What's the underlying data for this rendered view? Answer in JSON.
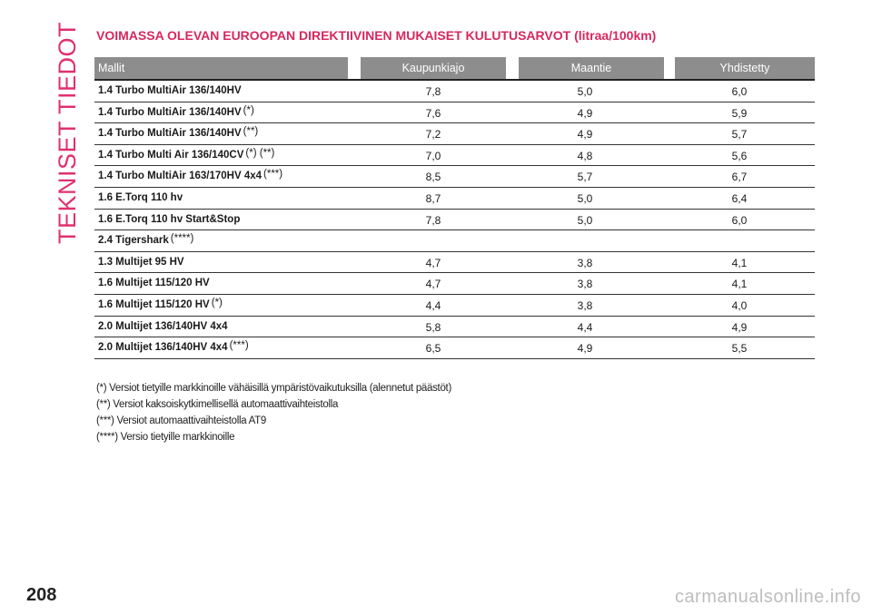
{
  "side_title": "TEKNISET TIEDOT",
  "heading": "VOIMASSA OLEVAN EUROOPAN DIREKTIIVINEN MUKAISET KULUTUSARVOT (litraa/100km)",
  "table": {
    "headers": [
      "Mallit",
      "Kaupunkiajo",
      "Maantie",
      "Yhdistetty"
    ],
    "rows": [
      {
        "model": "1.4 Turbo MultiAir 136/140HV",
        "note": "",
        "city": "7,8",
        "highway": "5,0",
        "combined": "6,0"
      },
      {
        "model": "1.4 Turbo MultiAir 136/140HV",
        "note": "(*)",
        "city": "7,6",
        "highway": "4,9",
        "combined": "5,9"
      },
      {
        "model": "1.4 Turbo MultiAir 136/140HV",
        "note": "(**)",
        "city": "7,2",
        "highway": "4,9",
        "combined": "5,7"
      },
      {
        "model": "1.4 Turbo Multi Air 136/140CV",
        "note": "(*) (**)",
        "city": "7,0",
        "highway": "4,8",
        "combined": "5,6"
      },
      {
        "model": "1.4 Turbo MultiAir 163/170HV 4x4",
        "note": "(***)",
        "city": "8,5",
        "highway": "5,7",
        "combined": "6,7"
      },
      {
        "model": "1.6 E.Torq 110 hv",
        "note": "",
        "city": "8,7",
        "highway": "5,0",
        "combined": "6,4"
      },
      {
        "model": "1.6 E.Torq 110 hv Start&Stop",
        "note": "",
        "city": "7,8",
        "highway": "5,0",
        "combined": "6,0"
      },
      {
        "model": "2.4 Tigershark",
        "note": "(****)",
        "city": "",
        "highway": "",
        "combined": ""
      },
      {
        "model": "1.3 Multijet 95 HV",
        "note": "",
        "city": "4,7",
        "highway": "3,8",
        "combined": "4,1"
      },
      {
        "model": "1.6 Multijet 115/120 HV",
        "note": "",
        "city": "4,7",
        "highway": "3,8",
        "combined": "4,1"
      },
      {
        "model": "1.6 Multijet 115/120 HV",
        "note": "(*)",
        "city": "4,4",
        "highway": "3,8",
        "combined": "4,0"
      },
      {
        "model": "2.0 Multijet 136/140HV 4x4",
        "note": "",
        "city": "5,8",
        "highway": "4,4",
        "combined": "4,9"
      },
      {
        "model": "2.0 Multijet 136/140HV 4x4",
        "note": "(***)",
        "city": "6,5",
        "highway": "4,9",
        "combined": "5,5"
      }
    ]
  },
  "footnotes": [
    "(*) Versiot tietyille markkinoille vähäisillä ympäristövaikutuksilla (alennetut päästöt)",
    "(**) Versiot kaksoiskytkimellisellä automaattivaihteistolla",
    "(***) Versiot automaattivaihteistolla AT9",
    "(****) Versio tietyille markkinoille"
  ],
  "page_number": "208",
  "watermark": "carmanualsonline.info",
  "colors": {
    "accent": "#d6285f",
    "header_bg": "#8d8d8d"
  }
}
